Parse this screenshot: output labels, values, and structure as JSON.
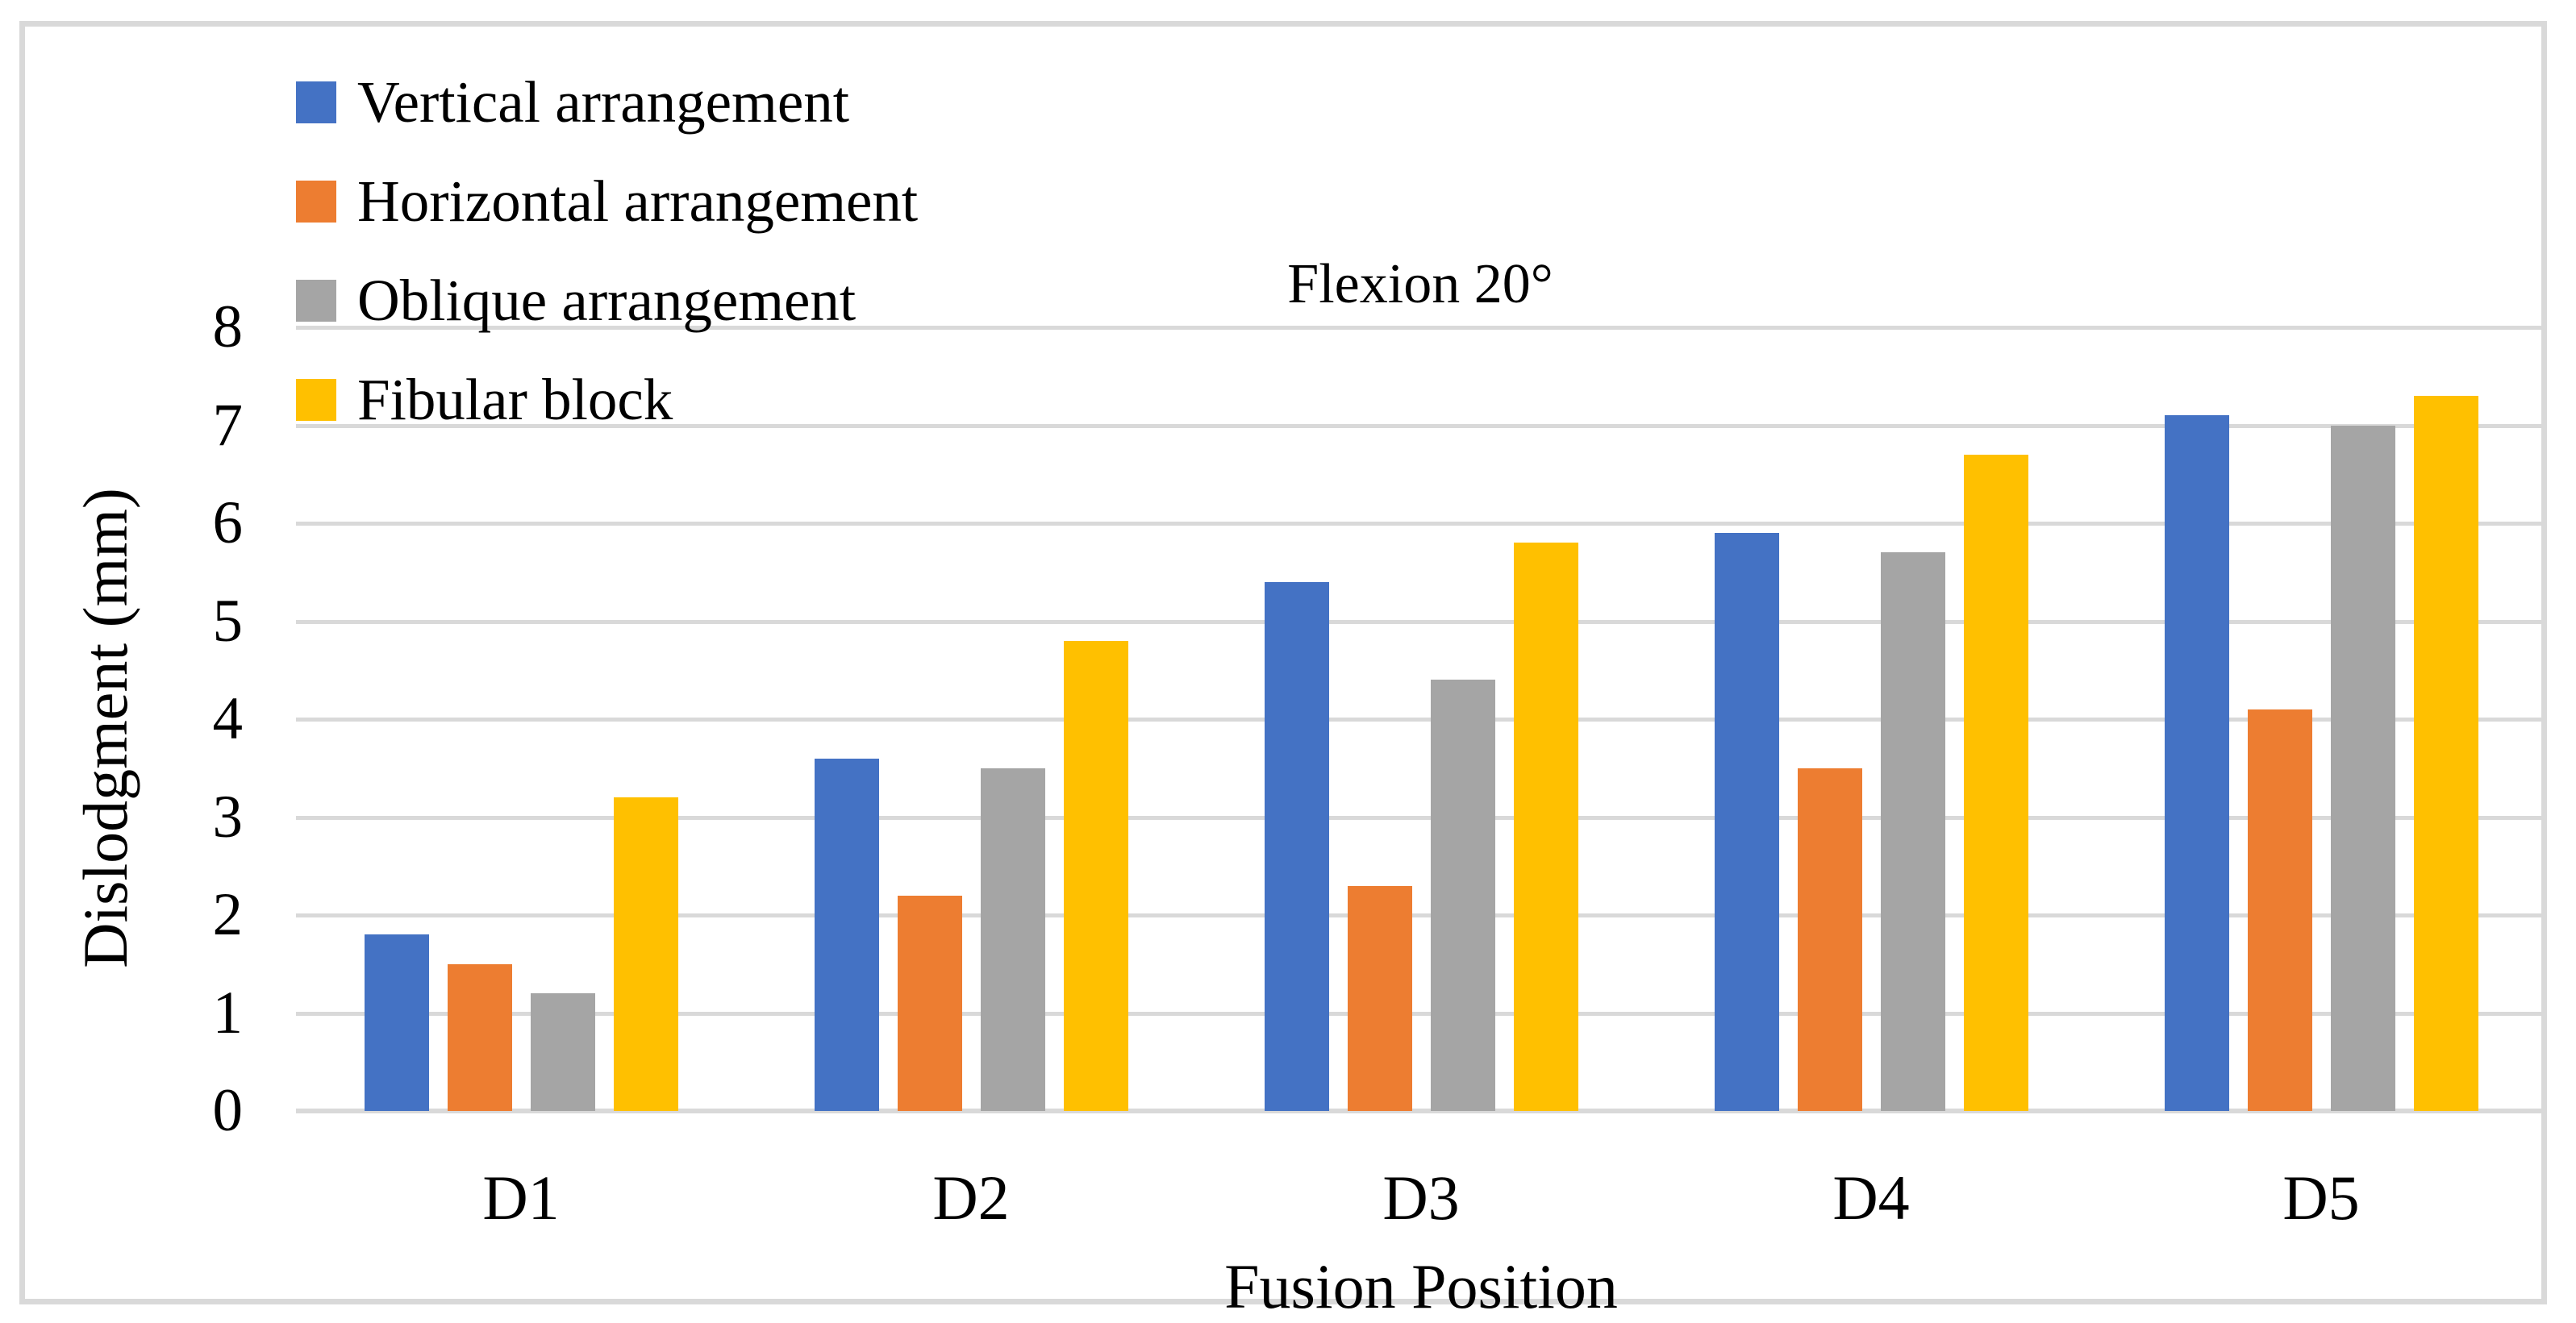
{
  "chart_data": {
    "type": "bar",
    "title": "Flexion 20°",
    "xlabel": "Fusion Position",
    "ylabel": "Dislodgment (mm)",
    "categories": [
      "D1",
      "D2",
      "D3",
      "D4",
      "D5"
    ],
    "series": [
      {
        "name": "Vertical arrangement",
        "color": "#4472C4",
        "values": [
          1.8,
          3.6,
          5.4,
          5.9,
          7.1
        ]
      },
      {
        "name": "Horizontal arrangement",
        "color": "#ED7D31",
        "values": [
          1.5,
          2.2,
          2.3,
          3.5,
          4.1
        ]
      },
      {
        "name": "Oblique arrangement",
        "color": "#A5A5A5",
        "values": [
          1.2,
          3.5,
          4.4,
          5.7,
          7.0
        ]
      },
      {
        "name": "Fibular block",
        "color": "#FFC000",
        "values": [
          3.2,
          4.8,
          5.8,
          6.7,
          7.3
        ]
      }
    ],
    "ylim": [
      0,
      8
    ],
    "yticks": [
      0,
      1,
      2,
      3,
      4,
      5,
      6,
      7,
      8
    ],
    "grid": true,
    "legend_position": "top-left",
    "gridline_color": "#D9D9D9",
    "frame_color": "#D9D9D9",
    "text_color": "#000000"
  }
}
